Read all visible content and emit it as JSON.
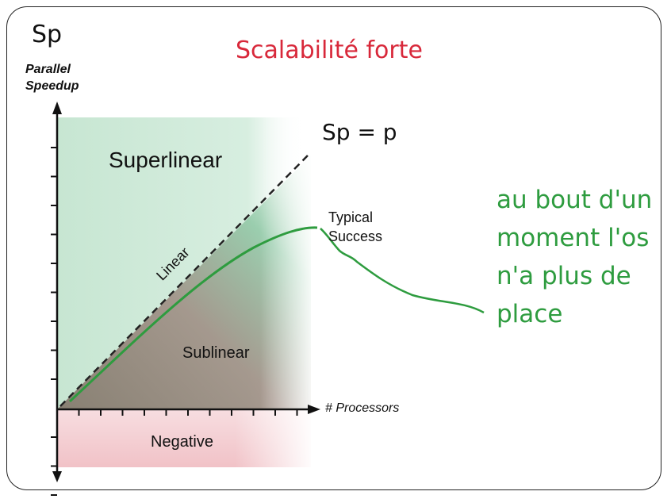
{
  "slide": {
    "corner_label": "Sp",
    "title": "Scalabilité forte",
    "formula": "Sp = p",
    "annotation_lines": [
      "au bout d'un",
      "moment l'os",
      "n'a plus de",
      "place"
    ]
  },
  "diagram": {
    "y_axis_label_lines": [
      "Parallel",
      "Speedup"
    ],
    "x_axis_label": "# Processors",
    "regions": {
      "superlinear": "Superlinear",
      "sublinear": "Sublinear",
      "negative": "Negative"
    },
    "curve_labels": {
      "linear": "Linear",
      "typical_lines": [
        "Typical",
        "Success"
      ]
    },
    "colors": {
      "title": "#d8283a",
      "annotation": "#2e9c3f",
      "superlinear_region": "#cfead9",
      "negative_region": "#f3c9cd",
      "curve": "#2e9c3f"
    }
  }
}
